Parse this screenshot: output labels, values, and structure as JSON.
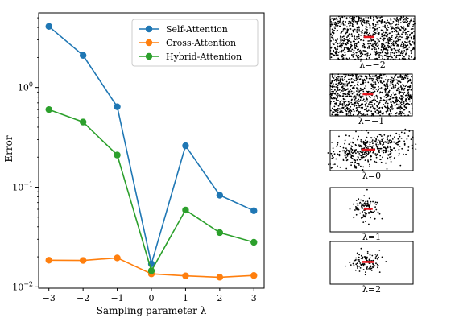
{
  "chart_data": [
    {
      "type": "line",
      "xlabel": "Sampling parameter λ",
      "ylabel": "Error",
      "yscale": "log",
      "xlim": [
        -3.3,
        3.3
      ],
      "ylim": [
        0.0097,
        5.6
      ],
      "x": [
        -3,
        -2,
        -1,
        0,
        1,
        2,
        3
      ],
      "xticklabels": [
        "−3",
        "−2",
        "−1",
        "0",
        "1",
        "2",
        "3"
      ],
      "yticks": [
        {
          "value": 0.01,
          "base": "10",
          "exp": "−2"
        },
        {
          "value": 0.1,
          "base": "10",
          "exp": "−1"
        },
        {
          "value": 1,
          "base": "10",
          "exp": "0"
        }
      ],
      "grid": false,
      "legend_position": "top-right",
      "series": [
        {
          "name": "Self-Attention",
          "color": "#1f77b4",
          "values": [
            4.1,
            2.1,
            0.64,
            0.017,
            0.26,
            0.083,
            0.058
          ]
        },
        {
          "name": "Cross-Attention",
          "color": "#ff7f0e",
          "values": [
            0.0185,
            0.0184,
            0.0195,
            0.0135,
            0.0129,
            0.0125,
            0.013
          ]
        },
        {
          "name": "Hybrid-Attention",
          "color": "#2ca02c",
          "values": [
            0.6,
            0.45,
            0.21,
            0.0145,
            0.059,
            0.035,
            0.028
          ]
        }
      ]
    },
    {
      "type": "scatter",
      "panels": [
        {
          "label": "λ=−2"
        },
        {
          "label": "λ=−1"
        },
        {
          "label": "λ=0"
        },
        {
          "label": "λ=1"
        },
        {
          "label": "λ=2"
        }
      ]
    }
  ]
}
